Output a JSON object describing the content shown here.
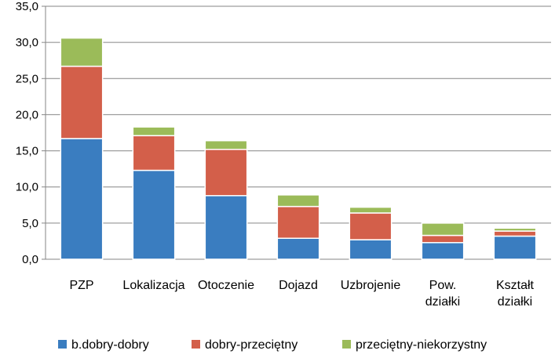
{
  "chart_data": {
    "type": "bar",
    "stacked": true,
    "title": "",
    "xlabel": "",
    "ylabel": "",
    "ylim": [
      0,
      35
    ],
    "yticks": [
      "0,0",
      "5,0",
      "10,0",
      "15,0",
      "20,0",
      "25,0",
      "30,0",
      "35,0"
    ],
    "grid": true,
    "legend_position": "bottom",
    "categories": [
      [
        "PZP"
      ],
      [
        "Lokalizacja"
      ],
      [
        "Otoczenie"
      ],
      [
        "Dojazd"
      ],
      [
        "Uzbrojenie"
      ],
      [
        "Pow.",
        "działki"
      ],
      [
        "Kształt",
        "działki"
      ]
    ],
    "series": [
      {
        "name": "b.dobry-dobry",
        "color": "#3A7DC0",
        "values": [
          16.7,
          12.3,
          8.8,
          2.9,
          2.7,
          2.3,
          3.2
        ]
      },
      {
        "name": "dobry-przeciętny",
        "color": "#D35F4A",
        "values": [
          10.0,
          4.8,
          6.4,
          4.4,
          3.7,
          1.0,
          0.7
        ]
      },
      {
        "name": "przeciętny-niekorzystny",
        "color": "#9BBB59",
        "values": [
          3.9,
          1.2,
          1.2,
          1.6,
          0.8,
          1.7,
          0.4
        ]
      }
    ]
  }
}
